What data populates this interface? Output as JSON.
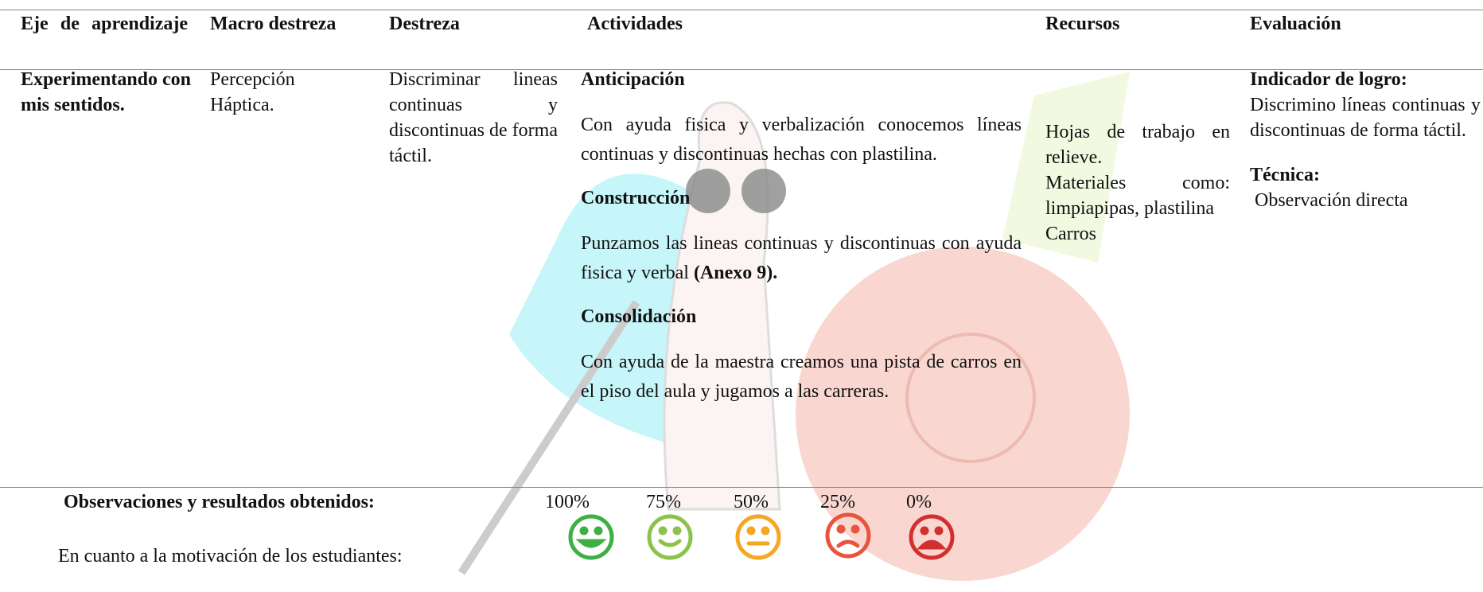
{
  "table": {
    "headers": [
      "Eje de aprendizaje",
      "Macro destreza",
      "Destreza",
      "Actividades",
      "Recursos",
      "Evaluación"
    ],
    "row": {
      "eje": "Experimentando con mis sentidos.",
      "macro": "Percepción Háptica.",
      "destreza": "Discriminar lineas continuas y discontinuas de forma táctil.",
      "actividades": [
        {
          "heading": "Anticipación",
          "text": "Con ayuda fisica y verbalización conocemos líneas continuas y discontinuas hechas con plastilina."
        },
        {
          "heading": "Construcción",
          "text": "Punzamos las lineas continuas y discontinuas con ayuda fisica y verbal",
          "bold": "(Anexo 9)."
        },
        {
          "heading": "Consolidación",
          "text": "Con ayuda de la maestra creamos una pista de carros en el piso del aula y jugamos a las carreras."
        }
      ],
      "recursos": [
        "Hojas de trabajo en relieve.",
        "Materiales como: limpiapipas, plastilina",
        "Carros"
      ],
      "evaluacion": {
        "indicador_label": "Indicador de logro:",
        "indicador": "Discrimino líneas continuas y discontinuas de forma táctil.",
        "tecnica_label": "Técnica:",
        "tecnica": "Observación directa"
      }
    }
  },
  "observaciones": {
    "title": "Observaciones y resultados obtenidos:",
    "scale": [
      "100%",
      "75%",
      "50%",
      "25%",
      "0%"
    ],
    "motivacion": "En cuanto a la motivación de los estudiantes:"
  }
}
